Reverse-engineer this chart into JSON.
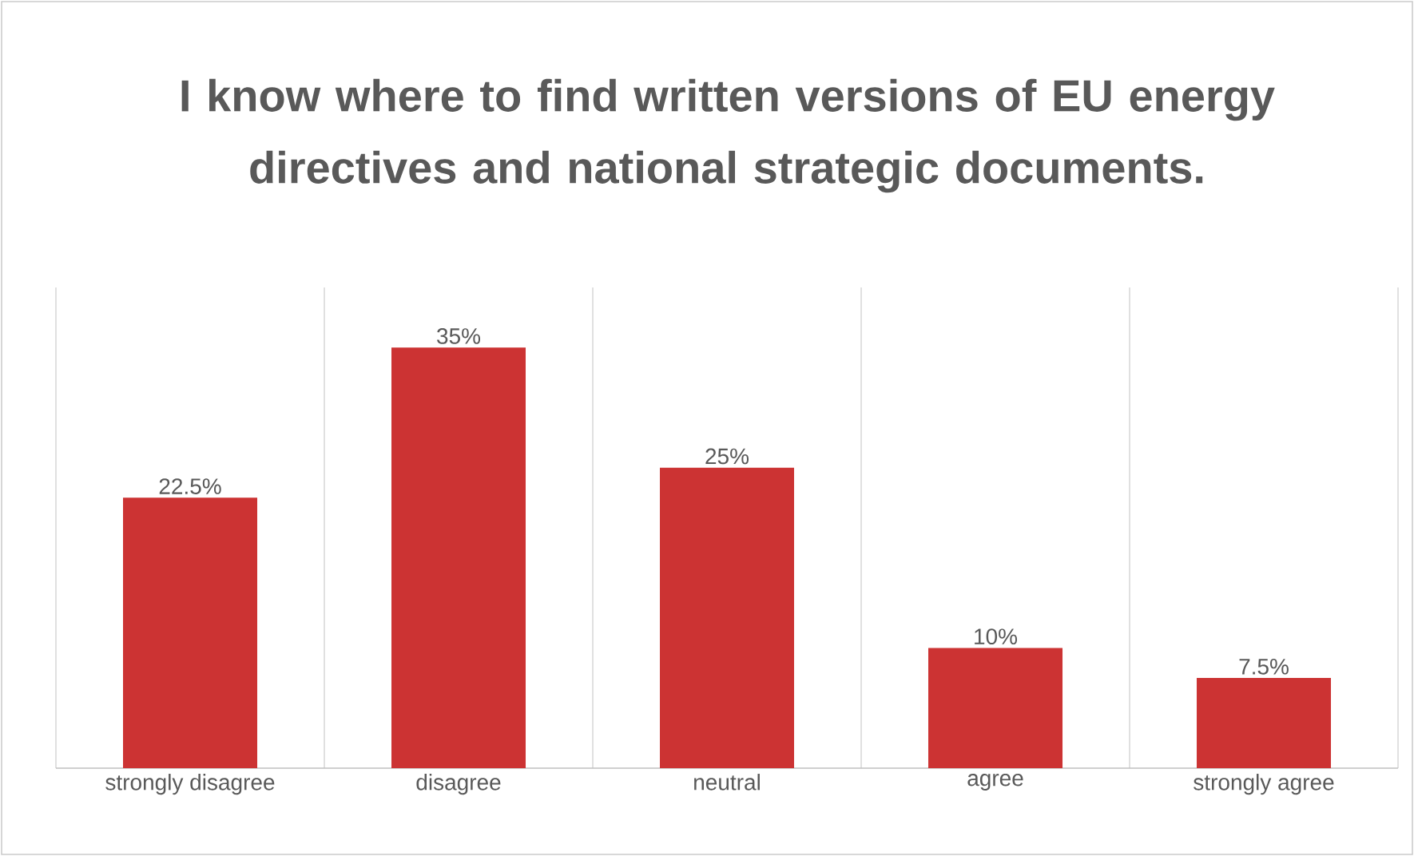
{
  "chart_data": {
    "type": "bar",
    "title": "I know where to find written versions of EU energy directives and national strategic documents.",
    "categories": [
      "strongly disagree",
      "disagree",
      "neutral",
      "agree",
      "strongly agree"
    ],
    "values": [
      22.5,
      35,
      25,
      10,
      7.5
    ],
    "value_labels": [
      "22.5%",
      "35%",
      "25%",
      "10%",
      "7.5%"
    ],
    "color": "#cc3333",
    "grid": "x"
  }
}
